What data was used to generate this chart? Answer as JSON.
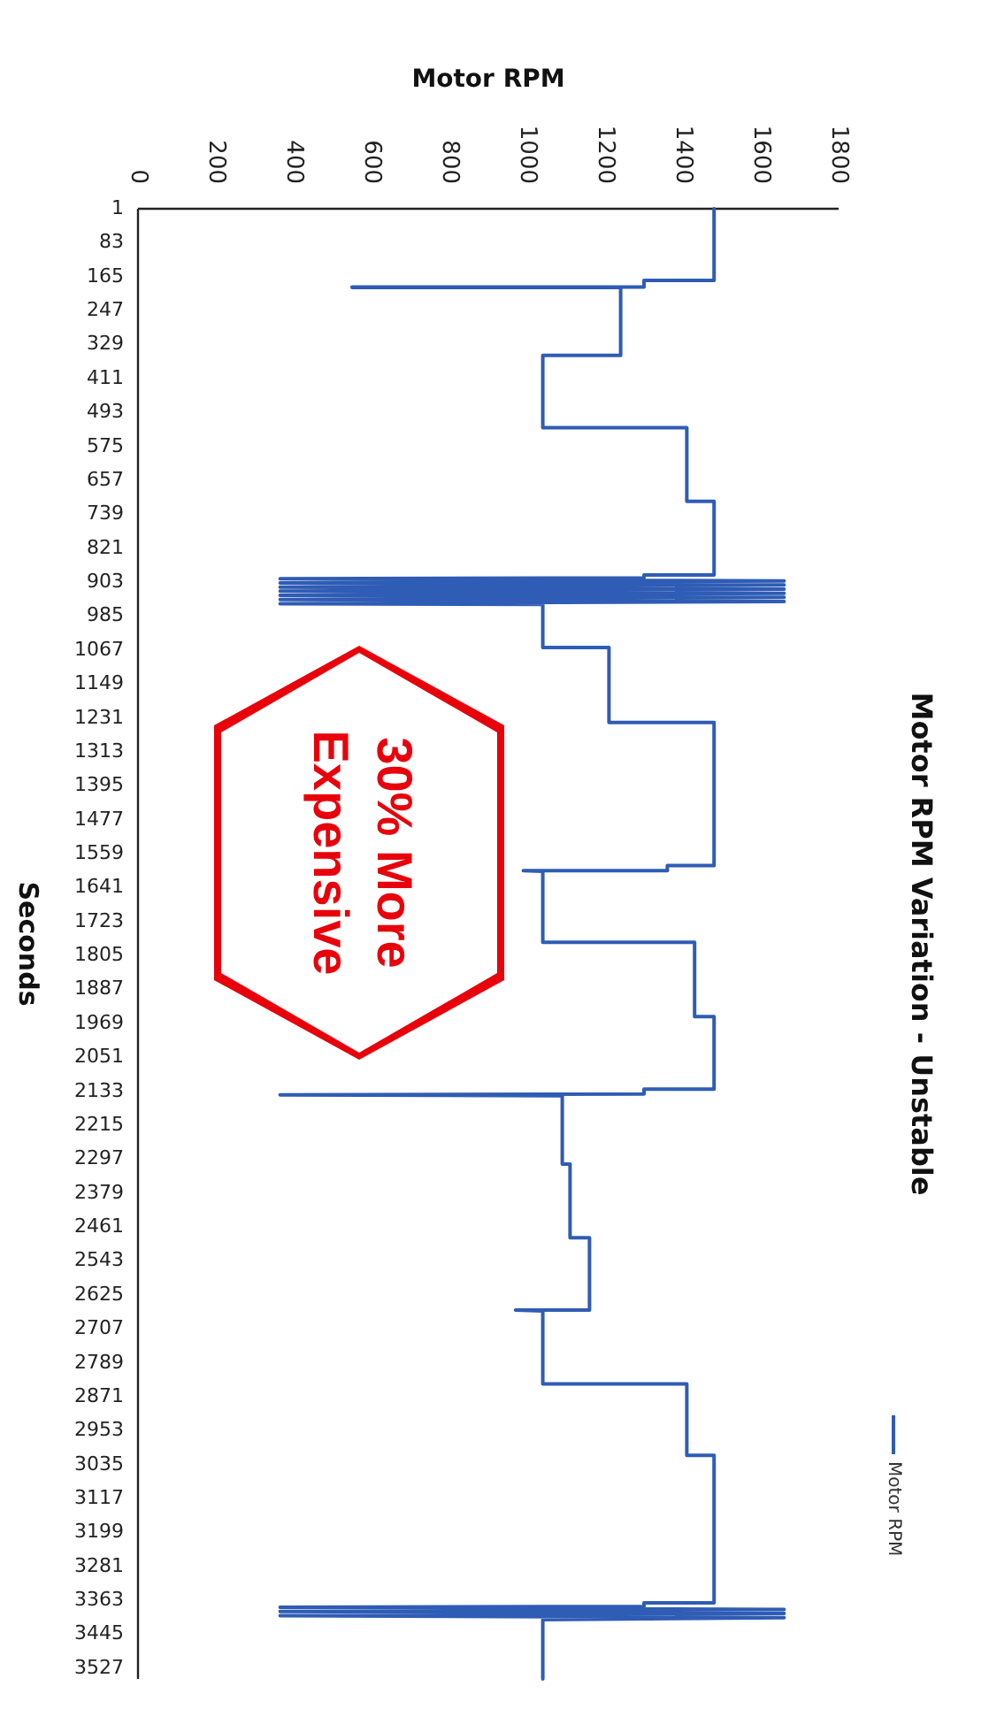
{
  "chart_data": {
    "type": "line",
    "orientation": "horizontal",
    "title": "Motor RPM Variation - Unstable",
    "xlabel": "Motor RPM",
    "ylabel": "Seconds",
    "annotations": [
      "30% More\nExpensive"
    ],
    "xlim": [
      0,
      1800
    ],
    "xticks": [
      0,
      200,
      400,
      600,
      800,
      1000,
      1200,
      1400,
      1600,
      1800
    ],
    "ylim": [
      3553,
      1
    ],
    "yticks": [
      1,
      83,
      165,
      247,
      329,
      411,
      493,
      575,
      657,
      739,
      821,
      903,
      985,
      1067,
      1149,
      1231,
      1313,
      1395,
      1477,
      1559,
      1641,
      1723,
      1805,
      1887,
      1969,
      2051,
      2133,
      2215,
      2297,
      2379,
      2461,
      2543,
      2625,
      2707,
      2789,
      2871,
      2953,
      3035,
      3117,
      3199,
      3281,
      3363,
      3445,
      3527
    ],
    "grid": false,
    "legend": "bottom right",
    "marker": "none",
    "line_style": "solid",
    "series": [
      {
        "name": "Motor RPM",
        "color": "#2f5cb4",
        "x": [
          1,
          174,
          174,
          190,
          190,
          191,
          191,
          355,
          355,
          530,
          530,
          708,
          708,
          886,
          886,
          893,
          895,
          900,
          905,
          910,
          915,
          920,
          925,
          930,
          935,
          940,
          945,
          950,
          955,
          957,
          1061,
          1061,
          1242,
          1242,
          1588,
          1588,
          1600,
          1600,
          1602,
          1773,
          1773,
          1953,
          1953,
          2128,
          2128,
          2140,
          2142,
          2144,
          2309,
          2309,
          2487,
          2487,
          2662,
          2662,
          2664,
          2840,
          2840,
          3013,
          3013,
          3369,
          3369,
          3378,
          3380,
          3385,
          3390,
          3395,
          3400,
          3405,
          3410,
          3553
        ],
        "values": [
          1480,
          1480,
          1300,
          1300,
          550,
          550,
          1240,
          1240,
          1040,
          1040,
          1410,
          1410,
          1480,
          1480,
          1300,
          1300,
          365,
          1660,
          365,
          1660,
          365,
          1660,
          365,
          1660,
          365,
          1660,
          365,
          1660,
          365,
          1040,
          1040,
          1210,
          1210,
          1480,
          1480,
          1360,
          1360,
          990,
          1040,
          1040,
          1430,
          1430,
          1480,
          1480,
          1300,
          1300,
          365,
          1090,
          1090,
          1110,
          1110,
          1160,
          1160,
          970,
          1040,
          1040,
          1410,
          1410,
          1480,
          1480,
          1300,
          1300,
          365,
          1660,
          365,
          1660,
          365,
          1660,
          1040,
          1040
        ]
      }
    ]
  }
}
